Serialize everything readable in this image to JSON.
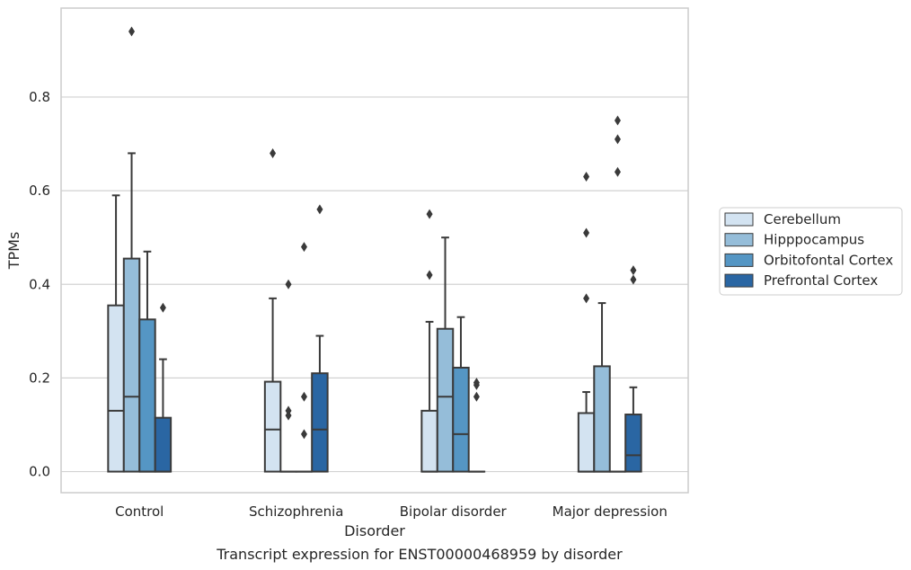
{
  "chart_data": {
    "type": "box",
    "caption": "Transcript expression for ENST00000468959 by disorder",
    "xlabel": "Disorder",
    "ylabel": "TPMs",
    "ylim": [
      -0.045,
      0.99
    ],
    "yticks": [
      0.0,
      0.2,
      0.4,
      0.6,
      0.8
    ],
    "ytick_labels": [
      "0.0",
      "0.2",
      "0.4",
      "0.6",
      "0.8"
    ],
    "grid": "horizontal",
    "legend_position": "right",
    "categories": [
      "Control",
      "Schizophrenia",
      "Bipolar disorder",
      "Major depression"
    ],
    "series": [
      {
        "name": "Cerebellum",
        "color": "#d3e3f1",
        "boxes": [
          {
            "whislo": 0.0,
            "q1": 0.0,
            "med": 0.13,
            "q3": 0.355,
            "whishi": 0.59,
            "fliers": []
          },
          {
            "whislo": 0.0,
            "q1": 0.0,
            "med": 0.09,
            "q3": 0.192,
            "whishi": 0.37,
            "fliers": [
              0.68
            ]
          },
          {
            "whislo": 0.0,
            "q1": 0.0,
            "med": 0.0,
            "q3": 0.13,
            "whishi": 0.32,
            "fliers": [
              0.42,
              0.55
            ]
          },
          {
            "whislo": 0.0,
            "q1": 0.0,
            "med": 0.0,
            "q3": 0.125,
            "whishi": 0.17,
            "fliers": [
              0.37,
              0.51,
              0.63
            ]
          }
        ]
      },
      {
        "name": "Hipppocampus",
        "color": "#95bdd9",
        "boxes": [
          {
            "whislo": 0.0,
            "q1": 0.0,
            "med": 0.16,
            "q3": 0.455,
            "whishi": 0.68,
            "fliers": [
              0.94
            ]
          },
          {
            "whislo": 0.0,
            "q1": 0.0,
            "med": 0.0,
            "q3": 0.0,
            "whishi": 0.0,
            "fliers": [
              0.12,
              0.13,
              0.4
            ]
          },
          {
            "whislo": 0.0,
            "q1": 0.0,
            "med": 0.16,
            "q3": 0.305,
            "whishi": 0.5,
            "fliers": []
          },
          {
            "whislo": 0.0,
            "q1": 0.0,
            "med": 0.0,
            "q3": 0.225,
            "whishi": 0.36,
            "fliers": []
          }
        ]
      },
      {
        "name": "Orbitofontal Cortex",
        "color": "#5596c4",
        "boxes": [
          {
            "whislo": 0.0,
            "q1": 0.0,
            "med": 0.0,
            "q3": 0.325,
            "whishi": 0.47,
            "fliers": []
          },
          {
            "whislo": 0.0,
            "q1": 0.0,
            "med": 0.0,
            "q3": 0.0,
            "whishi": 0.0,
            "fliers": [
              0.08,
              0.16,
              0.48
            ]
          },
          {
            "whislo": 0.0,
            "q1": 0.0,
            "med": 0.08,
            "q3": 0.222,
            "whishi": 0.33,
            "fliers": []
          },
          {
            "whislo": 0.0,
            "q1": 0.0,
            "med": 0.0,
            "q3": 0.0,
            "whishi": 0.0,
            "fliers": [
              0.64,
              0.71,
              0.75
            ]
          }
        ]
      },
      {
        "name": "Prefrontal Cortex",
        "color": "#2a66a3",
        "boxes": [
          {
            "whislo": 0.0,
            "q1": 0.0,
            "med": 0.0,
            "q3": 0.115,
            "whishi": 0.24,
            "fliers": [
              0.35
            ]
          },
          {
            "whislo": 0.0,
            "q1": 0.0,
            "med": 0.09,
            "q3": 0.21,
            "whishi": 0.29,
            "fliers": [
              0.56
            ]
          },
          {
            "whislo": 0.0,
            "q1": 0.0,
            "med": 0.0,
            "q3": 0.0,
            "whishi": 0.0,
            "fliers": [
              0.16,
              0.185,
              0.19
            ]
          },
          {
            "whislo": 0.0,
            "q1": 0.0,
            "med": 0.035,
            "q3": 0.122,
            "whishi": 0.18,
            "fliers": [
              0.41,
              0.43
            ]
          }
        ]
      }
    ]
  }
}
